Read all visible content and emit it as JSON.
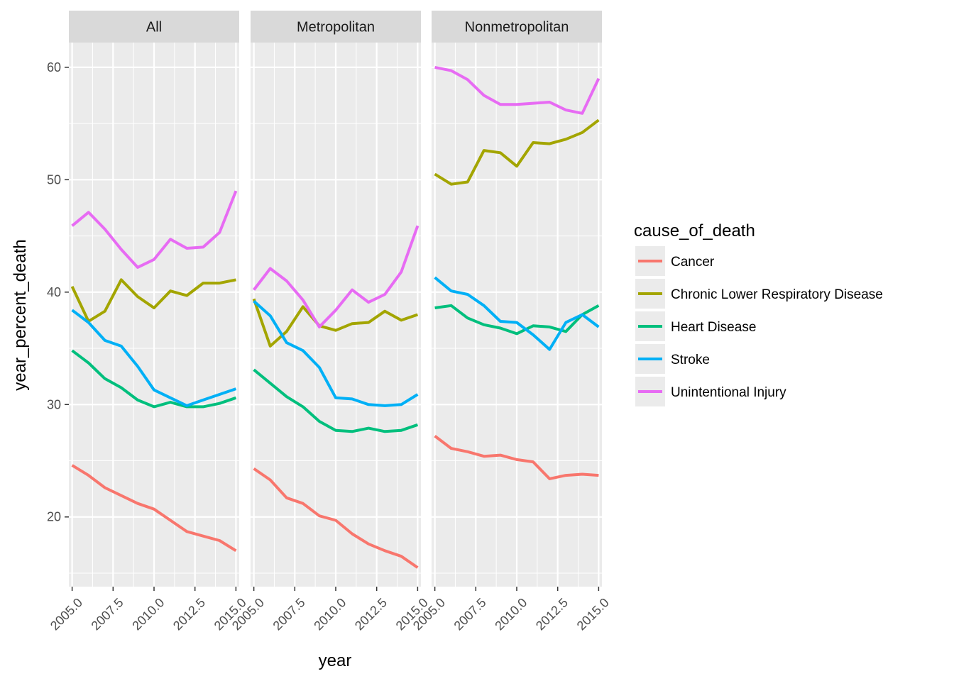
{
  "chart_data": {
    "type": "line",
    "xlabel": "year",
    "ylabel": "year_percent_death",
    "xlim": [
      2004.8,
      2015.2
    ],
    "ylim": [
      13.8,
      62.2
    ],
    "x_ticks": [
      2005,
      2007.5,
      2010,
      2012.5,
      2015
    ],
    "x_tick_labels": [
      "2005.0",
      "2007.5",
      "2010.0",
      "2012.5",
      "2015.0"
    ],
    "y_ticks": [
      20,
      30,
      40,
      50,
      60
    ],
    "y_tick_labels": [
      "20",
      "30",
      "40",
      "50",
      "60"
    ],
    "grid": true,
    "legend": {
      "title": "cause_of_death",
      "placement": "right",
      "entries": [
        {
          "name": "Cancer",
          "color": "#F8766D"
        },
        {
          "name": "Chronic Lower Respiratory Disease",
          "color": "#A3A500"
        },
        {
          "name": "Heart Disease",
          "color": "#00BF7D"
        },
        {
          "name": "Stroke",
          "color": "#00B0F6"
        },
        {
          "name": "Unintentional Injury",
          "color": "#E76BF3"
        }
      ]
    },
    "x": [
      2005,
      2006,
      2007,
      2008,
      2009,
      2010,
      2011,
      2012,
      2013,
      2014,
      2015
    ],
    "panels": [
      {
        "label": "All",
        "series": [
          {
            "name": "Cancer",
            "values": [
              24.6,
              23.7,
              22.6,
              21.9,
              21.2,
              20.7,
              19.7,
              18.7,
              18.3,
              17.9,
              17.0
            ]
          },
          {
            "name": "Chronic Lower Respiratory Disease",
            "values": [
              40.5,
              37.4,
              38.3,
              41.1,
              39.6,
              38.6,
              40.1,
              39.7,
              40.8,
              40.8,
              41.1
            ]
          },
          {
            "name": "Heart Disease",
            "values": [
              34.8,
              33.7,
              32.3,
              31.5,
              30.4,
              29.8,
              30.2,
              29.8,
              29.8,
              30.1,
              30.6
            ]
          },
          {
            "name": "Stroke",
            "values": [
              38.4,
              37.3,
              35.7,
              35.2,
              33.4,
              31.3,
              30.6,
              29.9,
              30.4,
              30.9,
              31.4
            ]
          },
          {
            "name": "Unintentional Injury",
            "values": [
              45.9,
              47.1,
              45.6,
              43.8,
              42.2,
              42.9,
              44.7,
              43.9,
              44.0,
              45.3,
              49.0
            ]
          }
        ]
      },
      {
        "label": "Metropolitan",
        "series": [
          {
            "name": "Cancer",
            "values": [
              24.3,
              23.3,
              21.7,
              21.2,
              20.1,
              19.7,
              18.5,
              17.6,
              17.0,
              16.5,
              15.5
            ]
          },
          {
            "name": "Chronic Lower Respiratory Disease",
            "values": [
              39.4,
              35.2,
              36.5,
              38.7,
              37.0,
              36.6,
              37.2,
              37.3,
              38.3,
              37.5,
              38.0
            ]
          },
          {
            "name": "Heart Disease",
            "values": [
              33.1,
              31.9,
              30.7,
              29.8,
              28.5,
              27.7,
              27.6,
              27.9,
              27.6,
              27.7,
              28.2
            ]
          },
          {
            "name": "Stroke",
            "values": [
              39.2,
              37.9,
              35.5,
              34.8,
              33.3,
              30.6,
              30.5,
              30.0,
              29.9,
              30.0,
              30.9
            ]
          },
          {
            "name": "Unintentional Injury",
            "values": [
              40.2,
              42.1,
              41.0,
              39.3,
              36.9,
              38.4,
              40.2,
              39.1,
              39.8,
              41.8,
              45.9
            ]
          }
        ]
      },
      {
        "label": "Nonmetropolitan",
        "series": [
          {
            "name": "Cancer",
            "values": [
              27.2,
              26.1,
              25.8,
              25.4,
              25.5,
              25.1,
              24.9,
              23.4,
              23.7,
              23.8,
              23.7
            ]
          },
          {
            "name": "Chronic Lower Respiratory Disease",
            "values": [
              50.5,
              49.6,
              49.8,
              52.6,
              52.4,
              51.2,
              53.3,
              53.2,
              53.6,
              54.2,
              55.3
            ]
          },
          {
            "name": "Heart Disease",
            "values": [
              38.6,
              38.8,
              37.7,
              37.1,
              36.8,
              36.3,
              37.0,
              36.9,
              36.5,
              38.0,
              38.8
            ]
          },
          {
            "name": "Stroke",
            "values": [
              41.3,
              40.1,
              39.8,
              38.8,
              37.4,
              37.3,
              36.2,
              34.9,
              37.3,
              38.0,
              36.9
            ]
          },
          {
            "name": "Unintentional Injury",
            "values": [
              60.0,
              59.7,
              58.9,
              57.5,
              56.7,
              56.7,
              56.8,
              56.9,
              56.2,
              55.9,
              59.0
            ]
          }
        ]
      }
    ]
  }
}
